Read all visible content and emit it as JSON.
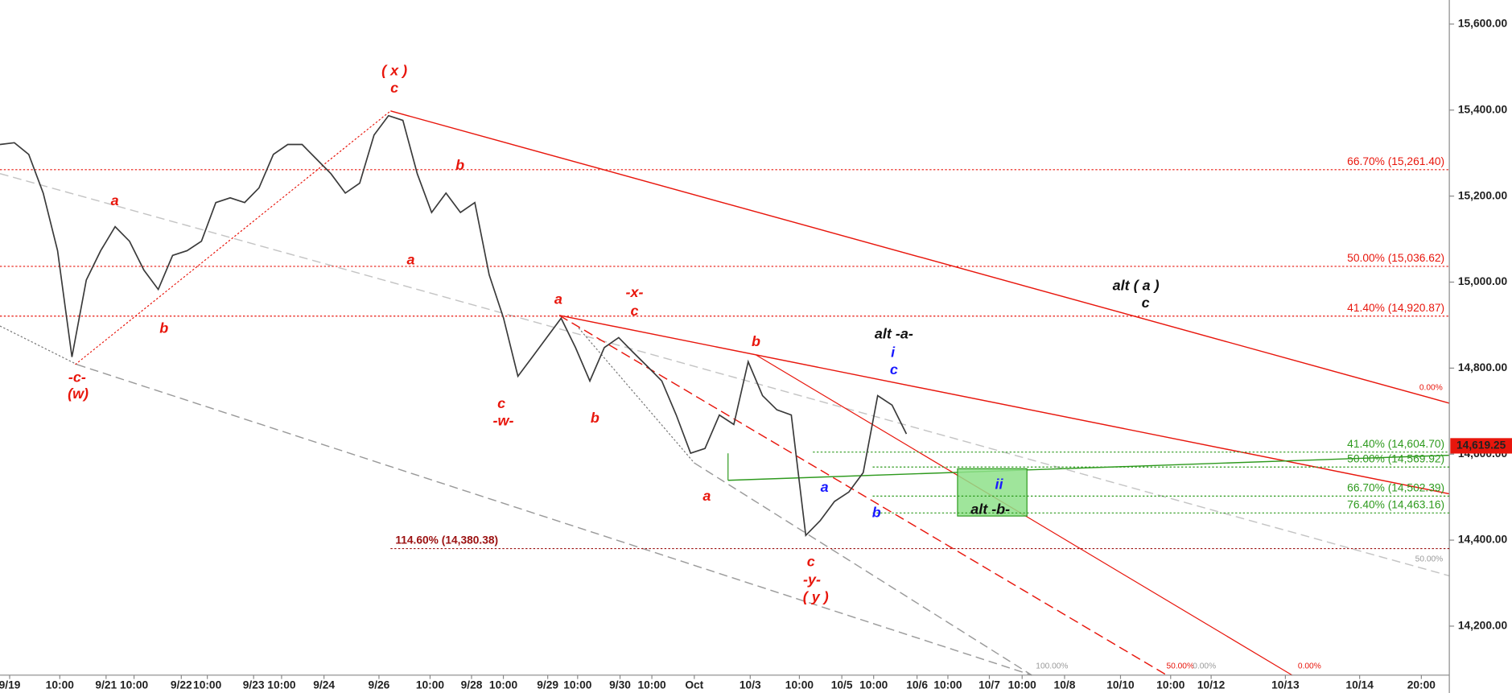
{
  "chart_data": {
    "type": "line",
    "x_labels": [
      "9/19",
      "10:00",
      "9/21",
      "10:00",
      "9/22",
      "10:00",
      "9/23",
      "10:00",
      "9/24",
      "9/26",
      "10:00",
      "9/28",
      "10:00",
      "9/29",
      "10:00",
      "9/30",
      "10:00",
      "Oct",
      "10/3",
      "10:00",
      "10/5",
      "10:00",
      "10/6",
      "10:00",
      "10/7",
      "10:00",
      "10/8",
      "10/10",
      "10:00",
      "10/12",
      "10/13",
      "10/14",
      "20:00"
    ],
    "series": [
      {
        "color": "#3a3a3a",
        "values": [
          15320,
          15324,
          15297,
          15207,
          15073,
          14826,
          15005,
          15073,
          15129,
          15095,
          15028,
          14983,
          15062,
          15073,
          15095,
          15185,
          15196,
          15185,
          15219,
          15297,
          15320,
          15320,
          15286,
          15252,
          15207,
          15230,
          15342,
          15387,
          15376,
          15252,
          15162,
          15207,
          15162,
          15185,
          15017,
          14916,
          14781,
          14826,
          14871,
          14916,
          14848,
          14770,
          14848,
          14871,
          14837,
          14804,
          14770,
          14691,
          14602,
          14613,
          14691,
          14669,
          14815,
          14736,
          14703,
          14691,
          14411,
          14445,
          14490,
          14512,
          14557,
          14736,
          14714,
          14647
        ]
      }
    ],
    "ylim": [
      14086,
      15656
    ],
    "yticks": [
      {
        "value": 14200,
        "label": "14,200.00"
      },
      {
        "value": 14400,
        "label": "14,400.00"
      },
      {
        "value": 14600,
        "label": "14,600.00"
      },
      {
        "value": 14800,
        "label": "14,800.00"
      },
      {
        "value": 15000,
        "label": "15,000.00"
      },
      {
        "value": 15200,
        "label": "15,200.00"
      },
      {
        "value": 15400,
        "label": "15,400.00"
      },
      {
        "value": 15600,
        "label": "15,600.00"
      }
    ],
    "levels": [
      {
        "value": 15261.4,
        "label": "66.70% (15,261.40)",
        "color": "#e8160c"
      },
      {
        "value": 15036.62,
        "label": "50.00% (15,036.62)",
        "color": "#e8160c"
      },
      {
        "value": 14920.87,
        "label": "41.40% (14,920.87)",
        "color": "#e8160c"
      },
      {
        "value": 14604.7,
        "label": "41.40% (14,604.70)",
        "color": "#2e9a1e"
      },
      {
        "value": 14569.92,
        "label": "50.00% (14,569.92)",
        "color": "#2e9a1e"
      },
      {
        "value": 14502.39,
        "label": "66.70% (14,502.39)",
        "color": "#2e9a1e"
      },
      {
        "value": 14463.16,
        "label": "76.40% (14,463.16)",
        "color": "#2e9a1e"
      },
      {
        "value": 14380.38,
        "label": "114.60% (14,380.38)",
        "color": "#9b1010"
      }
    ],
    "last_price": {
      "value": 14619.25,
      "label": "14,619.25",
      "color": "#e8160c"
    },
    "wave_labels": [
      {
        "text": "( x )",
        "color": "#e8160c"
      },
      {
        "text": "c",
        "color": "#e8160c"
      },
      {
        "text": "b",
        "color": "#e8160c"
      },
      {
        "text": "a",
        "color": "#e8160c"
      },
      {
        "text": "a",
        "color": "#e8160c"
      },
      {
        "text": "b",
        "color": "#e8160c"
      },
      {
        "text": "-c-",
        "color": "#e8160c"
      },
      {
        "text": "(w)",
        "color": "#e8160c"
      },
      {
        "text": "a",
        "color": "#e8160c"
      },
      {
        "text": "-x-",
        "color": "#e8160c"
      },
      {
        "text": "c",
        "color": "#e8160c"
      },
      {
        "text": "c",
        "color": "#e8160c"
      },
      {
        "text": "-w-",
        "color": "#e8160c"
      },
      {
        "text": "b",
        "color": "#e8160c"
      },
      {
        "text": "b",
        "color": "#e8160c"
      },
      {
        "text": "a",
        "color": "#e8160c"
      },
      {
        "text": "c",
        "color": "#e8160c"
      },
      {
        "text": "-y-",
        "color": "#e8160c"
      },
      {
        "text": "( y )",
        "color": "#e8160c"
      },
      {
        "text": "a",
        "color": "#1a1aff"
      },
      {
        "text": "b",
        "color": "#1a1aff"
      },
      {
        "text": "alt -a-",
        "color": "#111111"
      },
      {
        "text": "i",
        "color": "#1a1aff"
      },
      {
        "text": "c",
        "color": "#1a1aff"
      },
      {
        "text": "ii",
        "color": "#1a1aff"
      },
      {
        "text": "alt -b-",
        "color": "#111111"
      },
      {
        "text": "alt ( a )",
        "color": "#111111"
      },
      {
        "text": "c",
        "color": "#111111"
      }
    ],
    "pct_labels": [
      {
        "text": "0.00%",
        "color": "#e8160c"
      },
      {
        "text": "50.00%",
        "color": "#9a9a9a"
      },
      {
        "text": "100.00%",
        "color": "#9a9a9a"
      },
      {
        "text": "50.00%",
        "color": "#e8160c"
      },
      {
        "text": "0.00%",
        "color": "#9a9a9a"
      },
      {
        "text": "0.00%",
        "color": "#e8160c"
      }
    ]
  }
}
